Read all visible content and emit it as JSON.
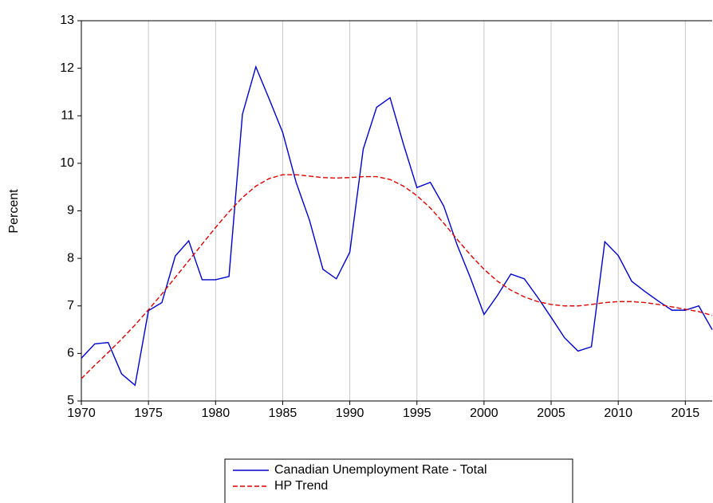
{
  "chart_data": {
    "type": "line",
    "ylabel": "Percent",
    "x": [
      1970,
      1971,
      1972,
      1973,
      1974,
      1975,
      1976,
      1977,
      1978,
      1979,
      1980,
      1981,
      1982,
      1983,
      1984,
      1985,
      1986,
      1987,
      1988,
      1989,
      1990,
      1991,
      1992,
      1993,
      1994,
      1995,
      1996,
      1997,
      1998,
      1999,
      2000,
      2001,
      2002,
      2003,
      2004,
      2005,
      2006,
      2007,
      2008,
      2009,
      2010,
      2011,
      2012,
      2013,
      2014,
      2015,
      2016,
      2017
    ],
    "series": [
      {
        "name": "Canadian Unemployment Rate - Total",
        "color": "#0000cc",
        "dash": false,
        "values": [
          5.9,
          6.2,
          6.23,
          5.57,
          5.33,
          6.9,
          7.07,
          8.05,
          8.37,
          7.55,
          7.55,
          7.62,
          11.03,
          12.03,
          11.35,
          10.65,
          9.6,
          8.8,
          7.77,
          7.57,
          8.13,
          10.3,
          11.18,
          11.38,
          10.4,
          9.49,
          9.6,
          9.1,
          8.28,
          7.58,
          6.82,
          7.22,
          7.67,
          7.57,
          7.18,
          6.76,
          6.33,
          6.05,
          6.14,
          8.35,
          8.06,
          7.52,
          7.3,
          7.1,
          6.91,
          6.91,
          7.0,
          6.5
        ]
      },
      {
        "name": "HP Trend",
        "color": "#dd0000",
        "dash": true,
        "values": [
          5.47,
          5.75,
          6.02,
          6.3,
          6.6,
          6.92,
          7.25,
          7.6,
          7.95,
          8.3,
          8.65,
          8.98,
          9.28,
          9.52,
          9.68,
          9.76,
          9.76,
          9.73,
          9.7,
          9.69,
          9.7,
          9.72,
          9.72,
          9.66,
          9.52,
          9.32,
          9.06,
          8.74,
          8.4,
          8.07,
          7.77,
          7.52,
          7.33,
          7.19,
          7.09,
          7.03,
          7.0,
          7.0,
          7.03,
          7.07,
          7.09,
          7.09,
          7.07,
          7.03,
          6.98,
          6.93,
          6.88,
          6.8
        ]
      }
    ],
    "xlim": [
      1970,
      2017
    ],
    "xticks": [
      1970,
      1975,
      1980,
      1985,
      1990,
      1995,
      2000,
      2005,
      2010,
      2015
    ],
    "ylim": [
      5,
      13
    ],
    "yticks": [
      5,
      6,
      7,
      8,
      9,
      10,
      11,
      12,
      13
    ],
    "grid": "x",
    "legend": "bottom"
  }
}
